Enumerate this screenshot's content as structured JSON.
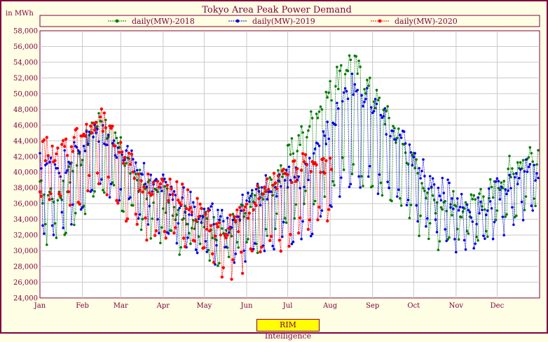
{
  "chart_data": {
    "type": "line",
    "title": "Tokyo Area Peak Power Demand",
    "ylabel": "in MWh",
    "ylim": [
      24000,
      58000
    ],
    "yticks": [
      24000,
      26000,
      28000,
      30000,
      32000,
      34000,
      36000,
      38000,
      40000,
      42000,
      44000,
      46000,
      48000,
      50000,
      52000,
      54000,
      56000,
      58000
    ],
    "ytick_labels": [
      "24,000",
      "26,000",
      "28,000",
      "30,000",
      "32,000",
      "34,000",
      "36,000",
      "38,000",
      "40,000",
      "42,000",
      "44,000",
      "46,000",
      "48,000",
      "50,000",
      "52,000",
      "54,000",
      "56,000",
      "58,000"
    ],
    "x_labels": [
      "Jan",
      "Feb",
      "Mar",
      "Apr",
      "May",
      "Jun",
      "Jul",
      "Aug",
      "Sep",
      "Oct",
      "Nov",
      "Dec"
    ],
    "grid": true,
    "legend_position": "top",
    "series": [
      {
        "name": "daily(MW)-2018",
        "color": "#007a00",
        "monthly_weekday": [
          37500,
          47000,
          38500,
          35000,
          32500,
          37500,
          46000,
          54500,
          46000,
          36500,
          35500,
          42000
        ],
        "monthly_weekend": [
          32000,
          39000,
          33000,
          31000,
          29000,
          32000,
          37000,
          41000,
          37000,
          31500,
          31000,
          36000
        ]
      },
      {
        "name": "daily(MW)-2019",
        "color": "#0000e6",
        "monthly_weekday": [
          41000,
          45500,
          40000,
          36500,
          33500,
          38000,
          40000,
          51500,
          45500,
          38500,
          35000,
          40000
        ],
        "monthly_weekend": [
          33500,
          38500,
          34500,
          32000,
          29000,
          31500,
          33000,
          40000,
          38000,
          32500,
          30500,
          35000
        ]
      },
      {
        "name": "daily(MW)-2020",
        "color": "#ff0000",
        "monthly_weekday": [
          43000,
          46500,
          39000,
          37000,
          32000,
          38500,
          41000,
          41500
        ],
        "monthly_weekend": [
          36000,
          39000,
          33000,
          31000,
          27000,
          30000,
          34000,
          35000
        ]
      }
    ]
  },
  "watermark": "RIM Intelligence"
}
